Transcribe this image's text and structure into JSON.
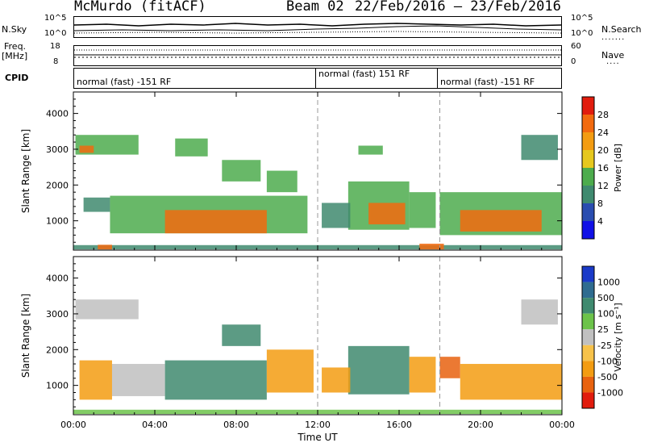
{
  "header": {
    "station": "McMurdo (fitACF)",
    "beam": "Beam 02",
    "date_range": "22/Feb/2016 – 23/Feb/2016"
  },
  "nsky_panel": {
    "left_label": "N.Sky",
    "right_label": "N.Search",
    "left_ticks": [
      "10^5",
      "10^0"
    ],
    "right_ticks": [
      "10^5",
      "10^0"
    ]
  },
  "freq_panel": {
    "left_label_1": "Freq.",
    "left_label_2": "[MHz]",
    "left_ticks": [
      "18",
      "8"
    ],
    "right_label": "Nave",
    "right_ticks": [
      "60",
      "0"
    ]
  },
  "cpid_panel": {
    "label": "CPID",
    "segments": [
      {
        "text": "normal (fast) -151 RF",
        "start_hour": 0
      },
      {
        "text": "normal (fast) 151 RF",
        "start_hour": 12
      },
      {
        "text": "normal (fast) -151 RF",
        "start_hour": 18
      }
    ]
  },
  "chart_data": [
    {
      "type": "heatmap",
      "title": "",
      "xlabel": "",
      "ylabel": "Slant Range [km]",
      "colorbar_label": "Power [dB]",
      "colorbar_ticks": [
        4,
        8,
        12,
        16,
        20,
        24,
        28
      ],
      "colorbar_colors": [
        "#1010e6",
        "#2a4db0",
        "#3f8a6f",
        "#4dac4d",
        "#e6c81e",
        "#f39c12",
        "#f26a0f",
        "#e11c0e"
      ],
      "y_ticks": [
        1000,
        2000,
        3000,
        4000
      ],
      "ylim": [
        180,
        4600
      ],
      "xlim": [
        0,
        24
      ],
      "x_ticks": [
        "00:00",
        "04:00",
        "08:00",
        "12:00",
        "16:00",
        "20:00",
        "00:00"
      ],
      "x_tick_hours": [
        0,
        4,
        8,
        12,
        16,
        20,
        24
      ],
      "echo_regions": [
        {
          "t0": 0.0,
          "t1": 24.0,
          "r0": 200,
          "r1": 320,
          "value": 10
        },
        {
          "t0": 1.2,
          "t1": 1.9,
          "r0": 200,
          "r1": 330,
          "value": 26
        },
        {
          "t0": 17.0,
          "t1": 18.2,
          "r0": 200,
          "r1": 360,
          "value": 26
        },
        {
          "t0": 0.1,
          "t1": 3.2,
          "r0": 2850,
          "r1": 3400,
          "value": 13
        },
        {
          "t0": 0.3,
          "t1": 1.0,
          "r0": 2900,
          "r1": 3100,
          "value": 24
        },
        {
          "t0": 5.0,
          "t1": 6.6,
          "r0": 2800,
          "r1": 3300,
          "value": 12
        },
        {
          "t0": 0.5,
          "t1": 1.8,
          "r0": 1250,
          "r1": 1650,
          "value": 11
        },
        {
          "t0": 1.8,
          "t1": 11.5,
          "r0": 650,
          "r1": 1700,
          "value": 13
        },
        {
          "t0": 4.5,
          "t1": 9.5,
          "r0": 650,
          "r1": 1300,
          "value": 27
        },
        {
          "t0": 7.3,
          "t1": 9.2,
          "r0": 2100,
          "r1": 2700,
          "value": 15
        },
        {
          "t0": 9.5,
          "t1": 11.0,
          "r0": 1800,
          "r1": 2400,
          "value": 14
        },
        {
          "t0": 13.5,
          "t1": 16.5,
          "r0": 750,
          "r1": 2100,
          "value": 15
        },
        {
          "t0": 14.5,
          "t1": 16.3,
          "r0": 900,
          "r1": 1500,
          "value": 26
        },
        {
          "t0": 12.2,
          "t1": 13.6,
          "r0": 800,
          "r1": 1500,
          "value": 11
        },
        {
          "t0": 14.0,
          "t1": 15.2,
          "r0": 2850,
          "r1": 3100,
          "value": 13
        },
        {
          "t0": 16.5,
          "t1": 17.8,
          "r0": 800,
          "r1": 1800,
          "value": 12
        },
        {
          "t0": 18.0,
          "t1": 24.0,
          "r0": 600,
          "r1": 1800,
          "value": 14
        },
        {
          "t0": 19.0,
          "t1": 23.0,
          "r0": 700,
          "r1": 1300,
          "value": 25
        },
        {
          "t0": 22.0,
          "t1": 23.8,
          "r0": 2700,
          "r1": 3400,
          "value": 11
        }
      ]
    },
    {
      "type": "heatmap",
      "title": "",
      "xlabel": "Time UT",
      "ylabel": "Slant Range [km]",
      "colorbar_label": "Velocity [m s⁻¹]",
      "colorbar_ticks": [
        1000,
        500,
        100,
        25,
        -25,
        -100,
        -500,
        -1000
      ],
      "colorbar_colors": [
        "#1a3ac8",
        "#2f6c90",
        "#3f8a6f",
        "#6cc34a",
        "#c0c0c0",
        "#f7c24a",
        "#f39c12",
        "#e8620f",
        "#e11c0e"
      ],
      "y_ticks": [
        1000,
        2000,
        3000,
        4000
      ],
      "ylim": [
        180,
        4600
      ],
      "xlim": [
        0,
        24
      ],
      "x_ticks": [
        "00:00",
        "04:00",
        "08:00",
        "12:00",
        "16:00",
        "20:00",
        "00:00"
      ],
      "x_tick_hours": [
        0,
        4,
        8,
        12,
        16,
        20,
        24
      ],
      "echo_regions": [
        {
          "t0": 0.0,
          "t1": 24.0,
          "r0": 200,
          "r1": 320,
          "value": 50
        },
        {
          "t0": 0.1,
          "t1": 3.2,
          "r0": 2850,
          "r1": 3400,
          "value": 0
        },
        {
          "t0": 0.3,
          "t1": 1.9,
          "r0": 600,
          "r1": 1700,
          "value": -200
        },
        {
          "t0": 1.9,
          "t1": 4.5,
          "r0": 700,
          "r1": 1600,
          "value": 0
        },
        {
          "t0": 4.5,
          "t1": 9.5,
          "r0": 600,
          "r1": 1700,
          "value": 200
        },
        {
          "t0": 7.3,
          "t1": 9.2,
          "r0": 2100,
          "r1": 2700,
          "value": 150
        },
        {
          "t0": 9.5,
          "t1": 11.8,
          "r0": 800,
          "r1": 2000,
          "value": -200
        },
        {
          "t0": 13.5,
          "t1": 16.5,
          "r0": 750,
          "r1": 2100,
          "value": 200
        },
        {
          "t0": 12.2,
          "t1": 13.6,
          "r0": 800,
          "r1": 1500,
          "value": -200
        },
        {
          "t0": 16.5,
          "t1": 17.8,
          "r0": 800,
          "r1": 1800,
          "value": -400
        },
        {
          "t0": 18.0,
          "t1": 19.0,
          "r0": 1200,
          "r1": 1800,
          "value": -600
        },
        {
          "t0": 19.0,
          "t1": 24.0,
          "r0": 600,
          "r1": 1600,
          "value": -300
        },
        {
          "t0": 22.0,
          "t1": 23.8,
          "r0": 2700,
          "r1": 3400,
          "value": 0
        }
      ],
      "vertical_markers_hours": [
        12,
        18
      ]
    }
  ]
}
